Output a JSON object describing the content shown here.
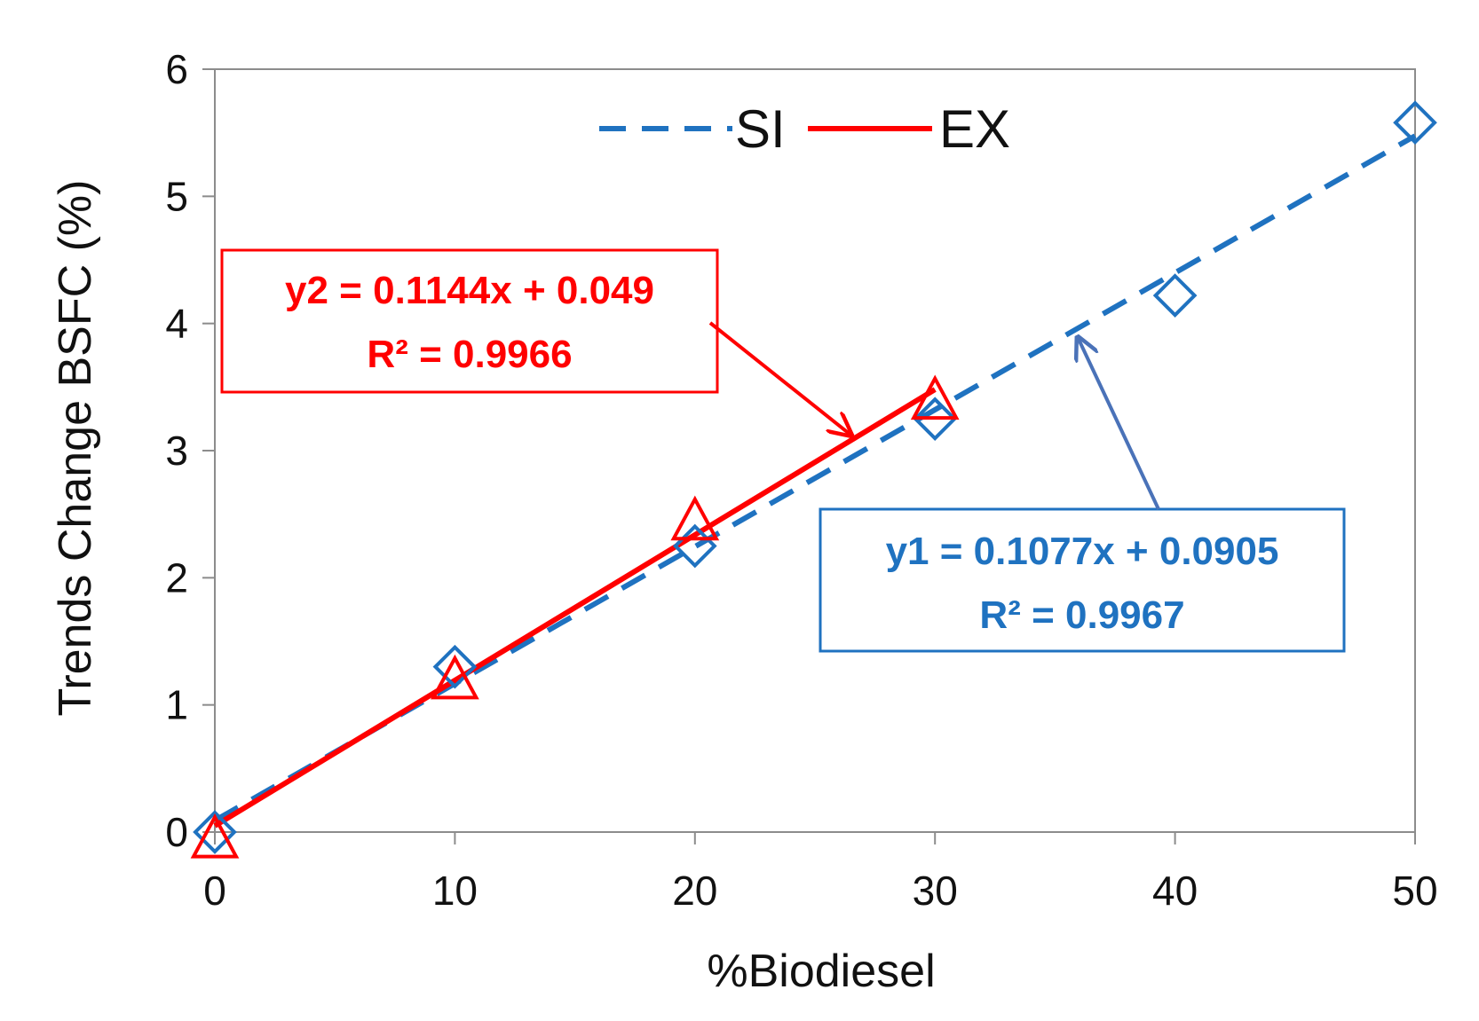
{
  "chart_data": {
    "type": "scatter",
    "title": "",
    "xlabel": "%Biodiesel",
    "ylabel": "Trends Change BSFC (%)",
    "xlim": [
      0,
      50
    ],
    "ylim": [
      0,
      6
    ],
    "x_ticks": [
      "0",
      "10",
      "20",
      "30",
      "40",
      "50"
    ],
    "y_ticks": [
      "0",
      "1",
      "2",
      "3",
      "4",
      "5",
      "6"
    ],
    "grid": false,
    "legend_position": "top-center",
    "series": [
      {
        "name": "SI",
        "marker": "diamond",
        "line_style": "dashed",
        "color": "#1f72c0",
        "x": [
          0,
          10,
          20,
          30,
          40,
          50
        ],
        "y": [
          0,
          1.3,
          2.25,
          3.25,
          4.22,
          5.58
        ],
        "trendline": {
          "slope": 0.1077,
          "intercept": 0.0905,
          "x_range": [
            0,
            50
          ]
        },
        "equation": "y1 = 0.1077x + 0.0905",
        "r_squared": "R² = 0.9967"
      },
      {
        "name": "EX",
        "marker": "triangle",
        "line_style": "solid",
        "color": "#ff0000",
        "x": [
          0,
          10,
          20,
          30
        ],
        "y": [
          -0.05,
          1.2,
          2.45,
          3.4
        ],
        "trendline": {
          "slope": 0.1144,
          "intercept": 0.049,
          "x_range": [
            0,
            30
          ]
        },
        "equation": "y2 = 0.1144x + 0.049",
        "r_squared": "R² = 0.9966"
      }
    ],
    "annotations": [
      {
        "series": "EX",
        "text": [
          "y2 = 0.1144x + 0.049",
          "R² = 0.9966"
        ],
        "points_to_x": 26.5
      },
      {
        "series": "SI",
        "text": [
          "y1 = 0.1077x + 0.0905",
          "R² = 0.9967"
        ],
        "points_to_x": 35.8
      }
    ]
  }
}
